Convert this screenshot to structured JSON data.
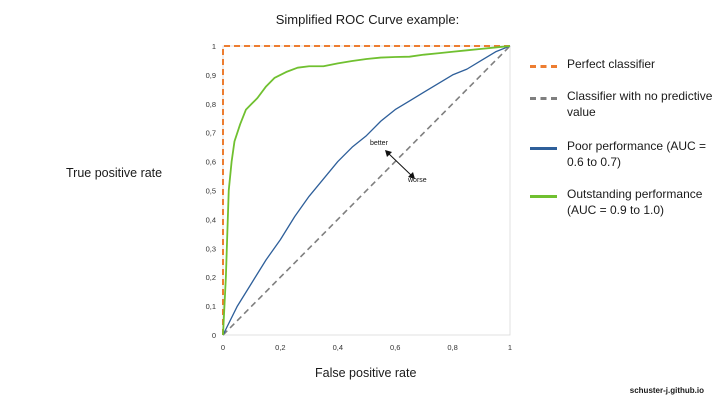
{
  "chart_data": {
    "type": "line",
    "title": "Simplified ROC Curve example:",
    "xlabel": "False positive rate",
    "ylabel": "True positive rate",
    "xlim": [
      0,
      1
    ],
    "ylim": [
      0,
      1
    ],
    "x_ticks": [
      "0",
      "0,2",
      "0,4",
      "0,6",
      "0,8",
      "1"
    ],
    "y_ticks": [
      "0",
      "0,1",
      "0,2",
      "0,3",
      "0,4",
      "0,5",
      "0,6",
      "0,7",
      "0,8",
      "0,9",
      "1"
    ],
    "grid": false,
    "legend_position": "right",
    "series": [
      {
        "name": "Perfect classifier",
        "style": "dashed",
        "color": "#ed7d31",
        "x": [
          0,
          0,
          1
        ],
        "y": [
          0,
          1,
          1
        ]
      },
      {
        "name": "Classifier with no predictive value",
        "style": "dashed",
        "color": "#7f7f7f",
        "x": [
          0,
          1
        ],
        "y": [
          0,
          1
        ]
      },
      {
        "name": "Poor performance (AUC = 0.6 to 0.7)",
        "style": "solid",
        "color": "#2e5f9a",
        "x": [
          0,
          0.05,
          0.1,
          0.15,
          0.2,
          0.25,
          0.3,
          0.35,
          0.4,
          0.45,
          0.5,
          0.55,
          0.6,
          0.65,
          0.7,
          0.75,
          0.8,
          0.85,
          0.9,
          0.95,
          1
        ],
        "y": [
          0,
          0.1,
          0.18,
          0.26,
          0.33,
          0.41,
          0.48,
          0.54,
          0.6,
          0.65,
          0.69,
          0.74,
          0.78,
          0.81,
          0.84,
          0.87,
          0.9,
          0.92,
          0.95,
          0.98,
          1
        ]
      },
      {
        "name": "Outstanding performance (AUC = 0.9 to 1.0)",
        "style": "solid",
        "color": "#70c030",
        "x": [
          0,
          0.01,
          0.02,
          0.03,
          0.04,
          0.06,
          0.08,
          0.1,
          0.12,
          0.15,
          0.18,
          0.22,
          0.26,
          0.3,
          0.35,
          0.4,
          0.45,
          0.5,
          0.55,
          0.6,
          0.65,
          0.7,
          0.75,
          0.8,
          0.85,
          0.9,
          0.95,
          1
        ],
        "y": [
          0,
          0.2,
          0.5,
          0.6,
          0.67,
          0.73,
          0.78,
          0.8,
          0.82,
          0.86,
          0.89,
          0.91,
          0.925,
          0.93,
          0.93,
          0.94,
          0.948,
          0.955,
          0.96,
          0.962,
          0.963,
          0.97,
          0.975,
          0.98,
          0.985,
          0.99,
          0.995,
          1
        ]
      }
    ],
    "annotations": [
      "better",
      "worse"
    ]
  },
  "legend": {
    "items": [
      {
        "label": "Perfect classifier",
        "color": "#ed7d31",
        "style": "dashed"
      },
      {
        "label": "Classifier with no predictive value",
        "color": "#7f7f7f",
        "style": "dashed"
      },
      {
        "label": "Poor performance (AUC = 0.6 to 0.7)",
        "color": "#2e5f9a",
        "style": "solid"
      },
      {
        "label": "Outstanding performance (AUC = 0.9 to 1.0)",
        "color": "#70c030",
        "style": "solid"
      }
    ]
  },
  "footer": "schuster-j.github.io"
}
